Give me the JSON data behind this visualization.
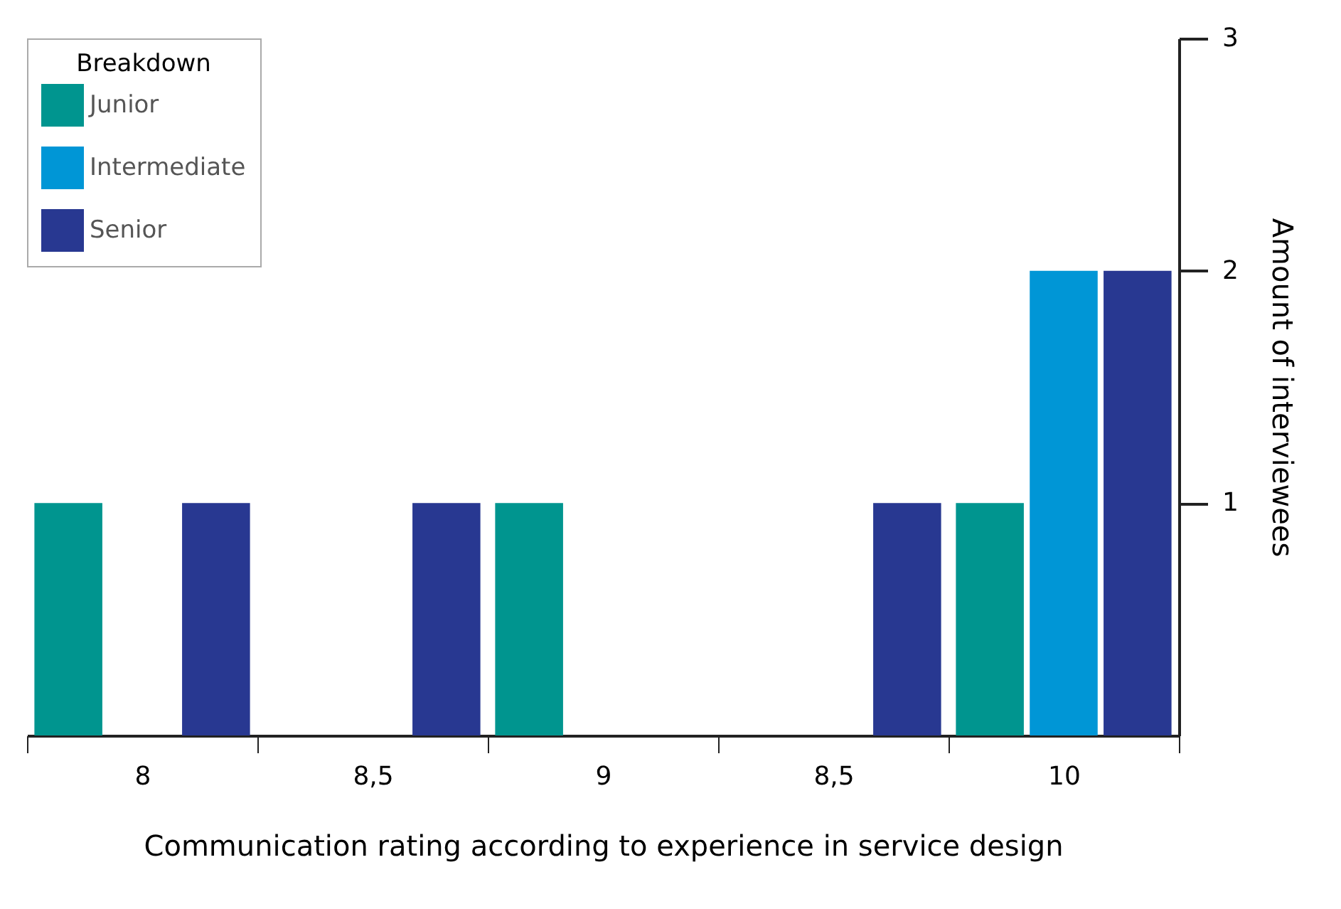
{
  "chart_data": {
    "type": "bar",
    "xlabel": "Communication rating according to experience in service design",
    "ylabel": "Amount of interviewees",
    "legend_title": "Breakdown",
    "legend": "top left",
    "grid": false,
    "categories": [
      "8",
      "8,5",
      "9",
      "8,5",
      "10"
    ],
    "series": [
      {
        "name": "Junior",
        "color": "#00958f",
        "values": [
          1,
          null,
          1,
          null,
          1
        ]
      },
      {
        "name": "Intermediate",
        "color": "#0096d6",
        "values": [
          null,
          null,
          null,
          null,
          2
        ]
      },
      {
        "name": "Senior",
        "color": "#283891",
        "values": [
          1,
          1,
          null,
          1,
          2
        ]
      }
    ],
    "ylim": [
      0,
      3
    ],
    "yticks": [
      1,
      2,
      3
    ]
  }
}
